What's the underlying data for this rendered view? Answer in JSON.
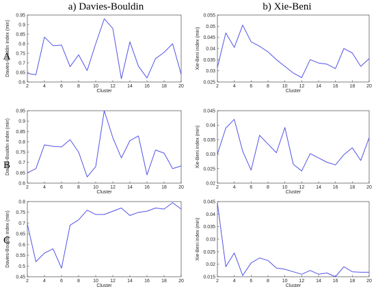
{
  "column_titles": [
    "a) Davies-Bouldin",
    "b) Xie-Beni"
  ],
  "row_labels": [
    "A",
    "B",
    "C"
  ],
  "colors": {
    "line": "#5151e6"
  },
  "chart_data": [
    {
      "type": "line",
      "row": "A",
      "column": "a) Davies-Bouldin",
      "xlabel": "Cluster",
      "ylabel": "Davies-Bouldin index (min)",
      "xlim": [
        2,
        20
      ],
      "ylim": [
        0.6,
        0.95
      ],
      "xticks": [
        "2",
        "4",
        "6",
        "8",
        "10",
        "12",
        "14",
        "16",
        "18",
        "20"
      ],
      "yticks": [
        "0.6",
        "0.65",
        "0.7",
        "0.75",
        "0.8",
        "0.85",
        "0.9",
        "0.95"
      ],
      "x": [
        2,
        3,
        4,
        5,
        6,
        7,
        8,
        9,
        10,
        11,
        12,
        13,
        14,
        15,
        16,
        17,
        18,
        19,
        20
      ],
      "y": [
        0.645,
        0.638,
        0.835,
        0.79,
        0.793,
        0.68,
        0.742,
        0.66,
        0.8,
        0.93,
        0.88,
        0.617,
        0.81,
        0.683,
        0.621,
        0.722,
        0.755,
        0.8,
        0.64
      ]
    },
    {
      "type": "line",
      "row": "A",
      "column": "b) Xie-Beni",
      "xlabel": "Cluster",
      "ylabel": "Xie-Beni index (min)",
      "xlim": [
        2,
        20
      ],
      "ylim": [
        0.025,
        0.055
      ],
      "xticks": [
        "2",
        "4",
        "6",
        "8",
        "10",
        "12",
        "14",
        "16",
        "18",
        "20"
      ],
      "yticks": [
        "0.025",
        "0.03",
        "0.035",
        "0.04",
        "0.045",
        "0.05",
        "0.055"
      ],
      "x": [
        2,
        3,
        4,
        5,
        6,
        7,
        8,
        9,
        10,
        11,
        12,
        13,
        14,
        15,
        16,
        17,
        18,
        19,
        20
      ],
      "y": [
        0.0315,
        0.047,
        0.0405,
        0.0505,
        0.043,
        0.041,
        0.0385,
        0.035,
        0.032,
        0.029,
        0.027,
        0.035,
        0.0335,
        0.033,
        0.031,
        0.04,
        0.038,
        0.032,
        0.0355
      ]
    },
    {
      "type": "line",
      "row": "B",
      "column": "a) Davies-Bouldin",
      "xlabel": "Cluster",
      "ylabel": "Davies-Bouldin index (min)",
      "xlim": [
        2,
        20
      ],
      "ylim": [
        0.6,
        0.95
      ],
      "xticks": [
        "2",
        "4",
        "6",
        "8",
        "10",
        "12",
        "14",
        "16",
        "18",
        "20"
      ],
      "yticks": [
        "0.6",
        "0.65",
        "0.7",
        "0.75",
        "0.8",
        "0.85",
        "0.9",
        "0.95"
      ],
      "x": [
        2,
        3,
        4,
        5,
        6,
        7,
        8,
        9,
        10,
        11,
        12,
        13,
        14,
        15,
        16,
        17,
        18,
        19,
        20
      ],
      "y": [
        0.65,
        0.67,
        0.785,
        0.778,
        0.775,
        0.81,
        0.75,
        0.63,
        0.68,
        0.95,
        0.82,
        0.722,
        0.805,
        0.828,
        0.64,
        0.76,
        0.745,
        0.67,
        0.683
      ]
    },
    {
      "type": "line",
      "row": "B",
      "column": "b) Xie-Beni",
      "xlabel": "Cluster",
      "ylabel": "Xie-Beni index (min)",
      "xlim": [
        2,
        20
      ],
      "ylim": [
        0.02,
        0.045
      ],
      "xticks": [
        "2",
        "4",
        "6",
        "8",
        "10",
        "12",
        "14",
        "16",
        "18",
        "20"
      ],
      "yticks": [
        "0.02",
        "0.025",
        "0.03",
        "0.035",
        "0.04",
        "0.045"
      ],
      "x": [
        2,
        3,
        4,
        5,
        6,
        7,
        8,
        9,
        10,
        11,
        12,
        13,
        14,
        15,
        16,
        17,
        18,
        19,
        20
      ],
      "y": [
        0.03,
        0.039,
        0.042,
        0.031,
        0.0245,
        0.0365,
        0.0335,
        0.0305,
        0.0392,
        0.0265,
        0.0242,
        0.0302,
        0.0287,
        0.0272,
        0.0263,
        0.0298,
        0.0322,
        0.0278,
        0.0357
      ]
    },
    {
      "type": "line",
      "row": "C",
      "column": "a) Davies-Bouldin",
      "xlabel": "Cluster",
      "ylabel": "Davies-Bouldin index (min)",
      "xlim": [
        2,
        20
      ],
      "ylim": [
        0.45,
        0.8
      ],
      "xticks": [
        "2",
        "4",
        "6",
        "8",
        "10",
        "12",
        "14",
        "16",
        "18",
        "20"
      ],
      "yticks": [
        "0.45",
        "0.5",
        "0.55",
        "0.6",
        "0.65",
        "0.7",
        "0.75",
        "0.8"
      ],
      "x": [
        2,
        3,
        4,
        5,
        6,
        7,
        8,
        9,
        10,
        11,
        12,
        13,
        14,
        15,
        16,
        17,
        18,
        19,
        20
      ],
      "y": [
        0.695,
        0.52,
        0.56,
        0.58,
        0.49,
        0.69,
        0.715,
        0.76,
        0.74,
        0.74,
        0.755,
        0.77,
        0.735,
        0.75,
        0.755,
        0.77,
        0.765,
        0.795,
        0.765
      ]
    },
    {
      "type": "line",
      "row": "C",
      "column": "b) Xie-Beni",
      "xlabel": "Cluster",
      "ylabel": "Xie-Beni index (min)",
      "xlim": [
        2,
        20
      ],
      "ylim": [
        0.015,
        0.045
      ],
      "xticks": [
        "2",
        "4",
        "6",
        "8",
        "10",
        "12",
        "14",
        "16",
        "18",
        "20"
      ],
      "yticks": [
        "0.015",
        "0.02",
        "0.025",
        "0.03",
        "0.035",
        "0.04",
        "0.045"
      ],
      "x": [
        2,
        3,
        4,
        5,
        6,
        7,
        8,
        9,
        10,
        11,
        12,
        13,
        14,
        15,
        16,
        17,
        18,
        19,
        20
      ],
      "y": [
        0.0445,
        0.019,
        0.0245,
        0.0155,
        0.0205,
        0.0225,
        0.0215,
        0.0185,
        0.018,
        0.017,
        0.016,
        0.0175,
        0.016,
        0.0165,
        0.015,
        0.019,
        0.017,
        0.0168,
        0.0168
      ]
    }
  ]
}
